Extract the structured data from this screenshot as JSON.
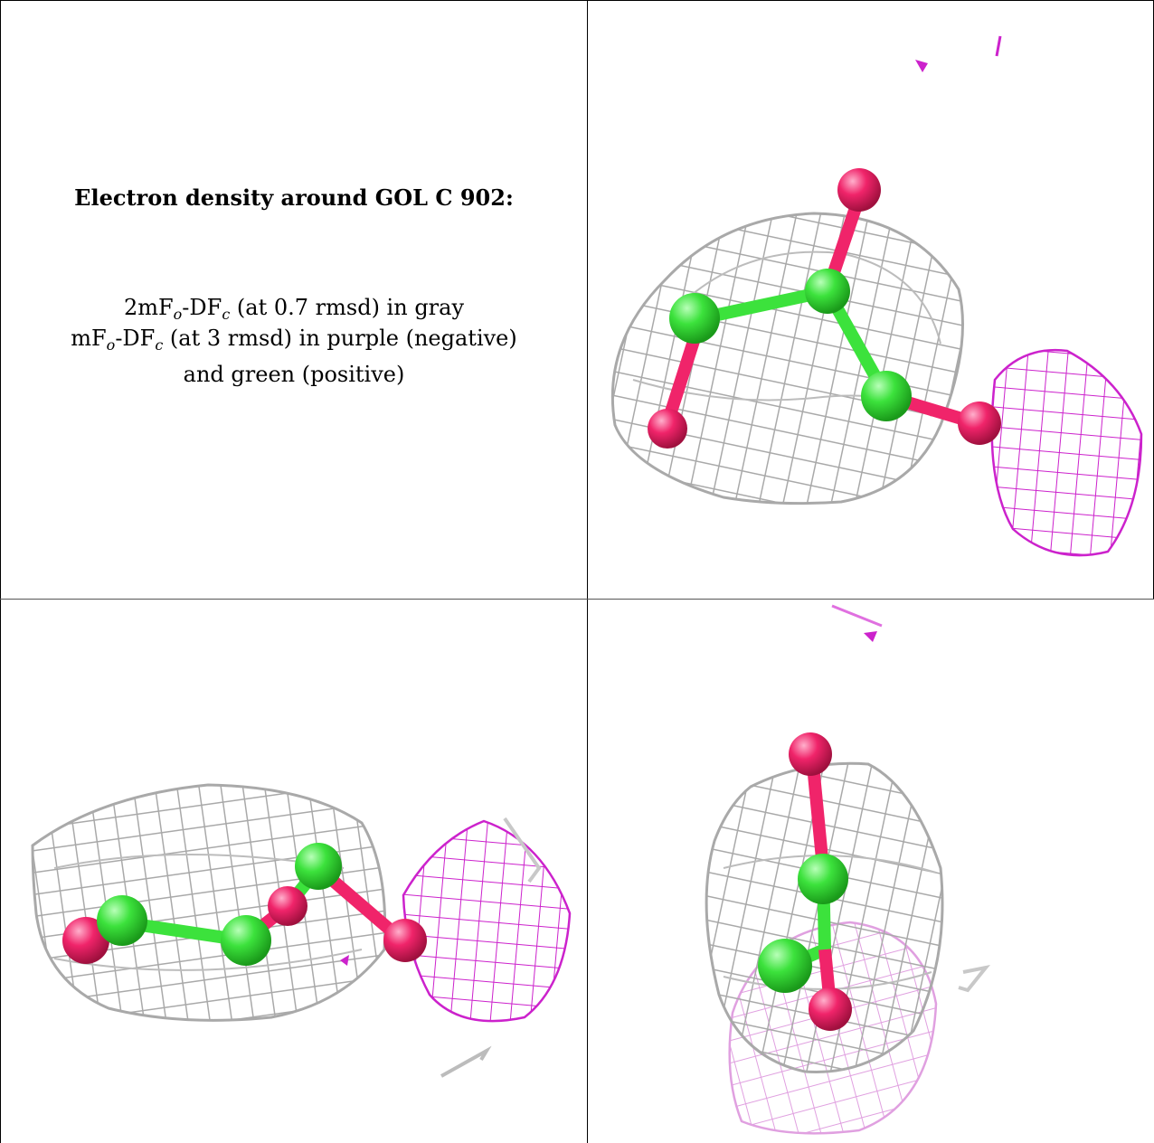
{
  "caption": {
    "title": "Electron density around GOL C 902:",
    "line1_prefix": "2mF",
    "line1_sub1": "o",
    "line1_mid": "-DF",
    "line1_sub2": "c",
    "line1_suffix": " (at 0.7 rmsd) in gray",
    "line2_prefix": "mF",
    "line2_sub1": "o",
    "line2_mid": "-DF",
    "line2_sub2": "c",
    "line2_suffix": " (at 3 rmsd) in purple (negative)",
    "line3": "and green (positive)"
  },
  "colors": {
    "mesh_gray": "#a9a9a9",
    "mesh_purple": "#cc22cc",
    "mesh_light_purple": "#e0a0e0",
    "carbon": "#3ce23c",
    "oxygen": "#f0246a"
  }
}
